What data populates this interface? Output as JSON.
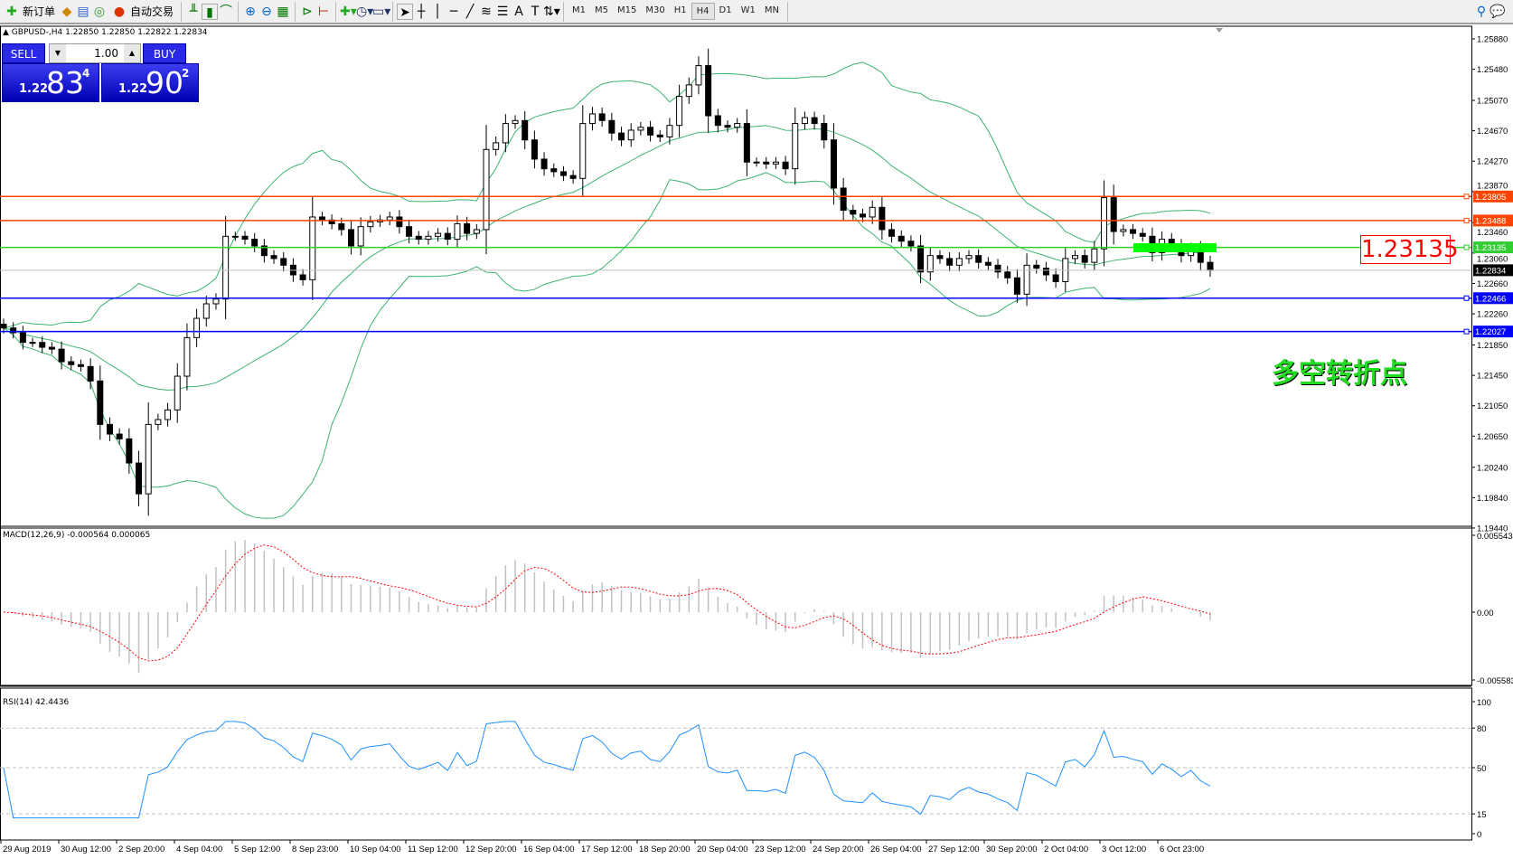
{
  "toolbar": {
    "new_order": "新订单",
    "auto_trading": "自动交易",
    "icons": [
      "new-order-icon",
      "market-watch-icon",
      "navigator-icon",
      "signal-icon",
      "auto-trading-icon",
      "bar-chart-icon",
      "candlestick-icon",
      "line-chart-icon",
      "zoom-in-icon",
      "zoom-out-icon",
      "tile-icon",
      "auto-scroll-icon",
      "chart-shift-icon",
      "indicators-icon",
      "periods-icon",
      "templates-icon",
      "cursor-icon",
      "crosshair-icon",
      "vertical-line-icon",
      "horizontal-line-icon",
      "trendline-icon",
      "fibonacci-icon",
      "channel-icon",
      "text-icon",
      "text-label-icon",
      "arrows-icon",
      "search-icon",
      "chat-icon"
    ],
    "timeframes": [
      "M1",
      "M5",
      "M15",
      "M30",
      "H1",
      "H4",
      "D1",
      "W1",
      "MN"
    ],
    "active_timeframe": "H4"
  },
  "chart": {
    "symbol_line": "GBPUSD-,H4  1.22850 1.22850 1.22822 1.22834",
    "sell_label": "SELL",
    "buy_label": "BUY",
    "lot": "1.00",
    "bid": {
      "prefix": "1.22",
      "big": "83",
      "sup": "4"
    },
    "ask": {
      "prefix": "1.22",
      "big": "90",
      "sup": "2"
    },
    "pivot_value": "1.23135",
    "pivot_text": "多空转折点",
    "current_price": "1.22834",
    "price_ticks": [
      "1.25880",
      "1.25480",
      "1.25070",
      "1.24670",
      "1.24270",
      "1.23870",
      "1.23460",
      "1.23060",
      "1.22660",
      "1.22260",
      "1.21850",
      "1.21450",
      "1.21050",
      "1.20650",
      "1.20240",
      "1.19840",
      "1.19440"
    ],
    "levels": [
      {
        "price": "1.23805",
        "color": "#FF4500"
      },
      {
        "price": "1.23488",
        "color": "#FF4500"
      },
      {
        "price": "1.23135",
        "color": "#32CD32"
      },
      {
        "price": "1.22466",
        "color": "#0000FF"
      },
      {
        "price": "1.22027",
        "color": "#0000FF"
      }
    ],
    "zone_color": "#00FF00",
    "time_labels": [
      "29 Aug 2019",
      "30 Aug 12:00",
      "2 Sep 20:00",
      "4 Sep 04:00",
      "5 Sep 12:00",
      "8 Sep 23:00",
      "10 Sep 04:00",
      "11 Sep 12:00",
      "12 Sep 20:00",
      "16 Sep 04:00",
      "17 Sep 12:00",
      "18 Sep 20:00",
      "20 Sep 04:00",
      "23 Sep 12:00",
      "24 Sep 20:00",
      "26 Sep 04:00",
      "27 Sep 12:00",
      "30 Sep 20:00",
      "2 Oct 04:00",
      "3 Oct 12:00",
      "6 Oct 23:00"
    ]
  },
  "macd": {
    "title": "MACD(12,26,9) -0.000564 0.000065",
    "ticks": [
      "0.005543",
      "0.00",
      "-0.005583"
    ],
    "signal_color": "#FF0000",
    "hist_color": "#C0C0C0"
  },
  "rsi": {
    "title": "RSI(14) 42.4436",
    "ticks": [
      "100",
      "80",
      "50",
      "15",
      "0"
    ],
    "color": "#1E90FF"
  },
  "chart_data": {
    "type": "candlestick",
    "symbol": "GBPUSD-",
    "timeframe": "H4",
    "ylim": [
      1.1944,
      1.2588
    ],
    "closes": [
      1.22074,
      1.22011,
      1.21884,
      1.21884,
      1.2182,
      1.21795,
      1.2163,
      1.21591,
      1.21566,
      1.21376,
      1.20804,
      1.20677,
      1.20614,
      1.20296,
      1.1989,
      1.20804,
      1.20868,
      1.20995,
      1.21439,
      1.21947,
      1.22201,
      1.22392,
      1.22455,
      1.23281,
      1.23281,
      1.23242,
      1.23154,
      1.23027,
      1.22988,
      1.229,
      1.22773,
      1.22709,
      1.23535,
      1.23496,
      1.23446,
      1.23369,
      1.23154,
      1.23408,
      1.23471,
      1.23496,
      1.23535,
      1.23408,
      1.23281,
      1.23242,
      1.23281,
      1.23319,
      1.23242,
      1.23446,
      1.23319,
      1.23369,
      1.24424,
      1.24512,
      1.24766,
      1.24805,
      1.2455,
      1.24297,
      1.2417,
      1.24131,
      1.24081,
      1.24043,
      1.24766,
      1.24893,
      1.24805,
      1.2464,
      1.2455,
      1.24678,
      1.24716,
      1.24614,
      1.24589,
      1.24741,
      1.25122,
      1.25274,
      1.25528,
      1.24868,
      1.24741,
      1.24716,
      1.24766,
      1.24258,
      1.24258,
      1.24233,
      1.24258,
      1.2417,
      1.24766,
      1.24843,
      1.24766,
      1.2455,
      1.23916,
      1.23623,
      1.23573,
      1.23535,
      1.23662,
      1.23369,
      1.23281,
      1.23217,
      1.23154,
      1.22811,
      1.23027,
      1.22988,
      1.229,
      1.22988,
      1.23027,
      1.22938,
      1.229,
      1.22811,
      1.22734,
      1.22519,
      1.229,
      1.22861,
      1.22773,
      1.22684,
      1.22988,
      1.23027,
      1.22938,
      1.23115,
      1.23789,
      1.23344,
      1.23369,
      1.23319,
      1.23281,
      1.23065,
      1.23242,
      1.23154,
      1.23027,
      1.23115,
      1.22938,
      1.22834
    ]
  }
}
